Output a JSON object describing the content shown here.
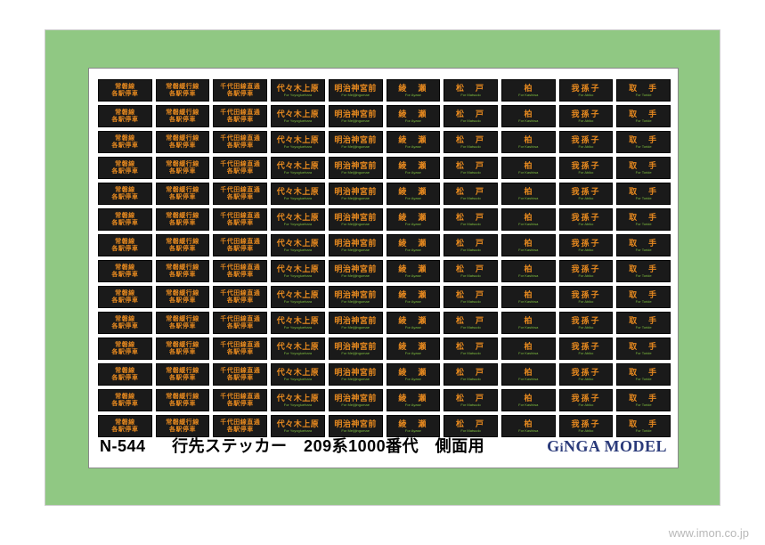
{
  "product": {
    "code": "N-544",
    "title_jp": "行先ステッカー　209系1000番代　側面用",
    "brand": "GiNGA MODEL"
  },
  "watermark": "www.imon.co.jp",
  "columns": [
    {
      "main": "常磐線\n各駅停車",
      "sub": "",
      "style": "twoLine"
    },
    {
      "main": "常磐緩行線\n各駅停車",
      "sub": "",
      "style": "twoLine"
    },
    {
      "main": "千代田線直通\n各駅停車",
      "sub": "",
      "style": "twoLine"
    },
    {
      "main": "代々木上原",
      "sub": "For Yoyogiuehara",
      "style": ""
    },
    {
      "main": "明治神宮前",
      "sub": "For Meijijingumae",
      "style": ""
    },
    {
      "main": "綾　瀬",
      "sub": "For Ayase",
      "style": "spaced1"
    },
    {
      "main": "松　戸",
      "sub": "For Matsudo",
      "style": "spaced1"
    },
    {
      "main": "柏",
      "sub": "For Kashiwa",
      "style": ""
    },
    {
      "main": "我孫子",
      "sub": "For Abiko",
      "style": "spaced1"
    },
    {
      "main": "取　手",
      "sub": "For Toride",
      "style": "spaced1"
    }
  ],
  "rowCount": 14,
  "colors": {
    "frameGreen": "#90c883",
    "stickerBg": "#1a1a1a",
    "textOrange": "#e88a1f",
    "subGreen": "#7fbf3f",
    "brandBlue": "#2a3a7a"
  }
}
